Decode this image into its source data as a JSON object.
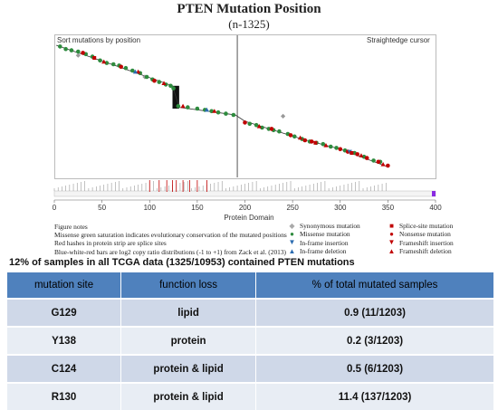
{
  "title": "PTEN Mutation  Position",
  "subtitle": "(n-1325)",
  "plot": {
    "left_label": "Sort mutations by position",
    "right_label": "Straightedge  cursor",
    "xlabel": "Protein Domain"
  },
  "chart_data": {
    "type": "scatter",
    "title": "PTEN Mutation  Position",
    "subtitle": "(n-1325)",
    "xlabel": "Protein Domain",
    "xlim": [
      0,
      400
    ],
    "x_ticks": [
      0,
      50,
      100,
      150,
      200,
      250,
      300,
      350,
      400
    ],
    "cursor_x": 192,
    "series": [
      {
        "name": "Synonymous mutation",
        "color": "#999999",
        "points": [
          [
            25,
            92
          ],
          [
            95,
            75
          ],
          [
            240,
            44
          ]
        ]
      },
      {
        "name": "Missense mutation",
        "color": "#2e8b3e",
        "points": [
          [
            6,
            99
          ],
          [
            12,
            97
          ],
          [
            18,
            96
          ],
          [
            25,
            95
          ],
          [
            33,
            93
          ],
          [
            40,
            91
          ],
          [
            48,
            88
          ],
          [
            55,
            86
          ],
          [
            62,
            85
          ],
          [
            68,
            84
          ],
          [
            75,
            82
          ],
          [
            82,
            80
          ],
          [
            90,
            78
          ],
          [
            97,
            75
          ],
          [
            103,
            73
          ],
          [
            110,
            71
          ],
          [
            117,
            69
          ],
          [
            122,
            68
          ],
          [
            125,
            66
          ],
          [
            130,
            52
          ],
          [
            140,
            51
          ],
          [
            150,
            50
          ],
          [
            158,
            49
          ],
          [
            165,
            48
          ],
          [
            172,
            47
          ],
          [
            180,
            46
          ],
          [
            188,
            45
          ],
          [
            205,
            38
          ],
          [
            212,
            37
          ],
          [
            218,
            35
          ],
          [
            225,
            34
          ],
          [
            230,
            33
          ],
          [
            236,
            32
          ],
          [
            245,
            30
          ],
          [
            252,
            28
          ],
          [
            260,
            26
          ],
          [
            268,
            24
          ],
          [
            275,
            23
          ],
          [
            282,
            22
          ],
          [
            290,
            20
          ],
          [
            296,
            19
          ],
          [
            305,
            17
          ],
          [
            315,
            15
          ],
          [
            325,
            12
          ],
          [
            335,
            9
          ],
          [
            342,
            8
          ]
        ]
      },
      {
        "name": "Nonsense mutation",
        "color": "#c00000",
        "points": [
          [
            30,
            94
          ],
          [
            70,
            83
          ],
          [
            105,
            72
          ],
          [
            200,
            39
          ],
          [
            228,
            34
          ],
          [
            248,
            29
          ],
          [
            263,
            25
          ],
          [
            270,
            24
          ],
          [
            300,
            18
          ],
          [
            308,
            16
          ],
          [
            318,
            14
          ],
          [
            328,
            11
          ],
          [
            340,
            8
          ],
          [
            350,
            5
          ]
        ]
      },
      {
        "name": "Frameshift deletion",
        "color": "#c00000",
        "points": [
          [
            52,
            87
          ],
          [
            88,
            79
          ],
          [
            115,
            70
          ],
          [
            135,
            52
          ],
          [
            168,
            48
          ],
          [
            215,
            36
          ],
          [
            258,
            27
          ],
          [
            285,
            21
          ],
          [
            322,
            13
          ],
          [
            345,
            6
          ]
        ]
      },
      {
        "name": "In-frame deletion",
        "color": "#2a6bb0",
        "points": [
          [
            85,
            79
          ],
          [
            160,
            49
          ]
        ]
      },
      {
        "name": "In-frame insertion",
        "color": "#2a6bb0",
        "points": [
          [
            310,
            16
          ]
        ]
      },
      {
        "name": "Splice-site mutation",
        "color": "#c00000",
        "points": [
          [
            42,
            90
          ],
          [
            274,
            23
          ],
          [
            312,
            15
          ]
        ]
      }
    ],
    "notes": [
      "Figure notes",
      "Missense green saturation indicates evolutionary conservation of the mutated positions",
      "Red hashes in protein strip are splice sites",
      "Blue-white-red bars are log2  copy ratio distributions (-1 to +1) from Zack et al. (2013)"
    ]
  },
  "legend": {
    "col1": [
      {
        "label": "Synonymous mutation",
        "symbol": "◆",
        "color": "#aaaaaa"
      },
      {
        "label": "Missense mutation",
        "symbol": "●",
        "color": "#2e8b3e"
      },
      {
        "label": "In-frame insertion",
        "symbol": "▼",
        "color": "#2a6bb0"
      },
      {
        "label": "In-frame deletion",
        "symbol": "▲",
        "color": "#2a6bb0"
      }
    ],
    "col2": [
      {
        "label": "Splice-site mutation",
        "symbol": "■",
        "color": "#c00000"
      },
      {
        "label": "Nonsense mutation",
        "symbol": "●",
        "color": "#c00000"
      },
      {
        "label": "Frameshift insertion",
        "symbol": "▼",
        "color": "#c00000"
      },
      {
        "label": "Frameshift deletion",
        "symbol": "▲",
        "color": "#c00000"
      }
    ]
  },
  "summary": "12% of samples in all TCGA data (1325/10953) contained PTEN mutations",
  "table": {
    "headers": [
      "mutation site",
      "function loss",
      "% of total mutated samples"
    ],
    "rows": [
      [
        "G129",
        "lipid",
        "0.9 (11/1203)"
      ],
      [
        "Y138",
        "protein",
        "0.2 (3/1203)"
      ],
      [
        "C124",
        "protein & lipid",
        "0.5 (6/1203)"
      ],
      [
        "R130",
        "protein & lipid",
        "11.4 (137/1203)"
      ]
    ]
  },
  "colors": {
    "header_bg": "#4f81bd",
    "row_odd": "#cfd8e8",
    "row_even": "#e8edf4"
  }
}
